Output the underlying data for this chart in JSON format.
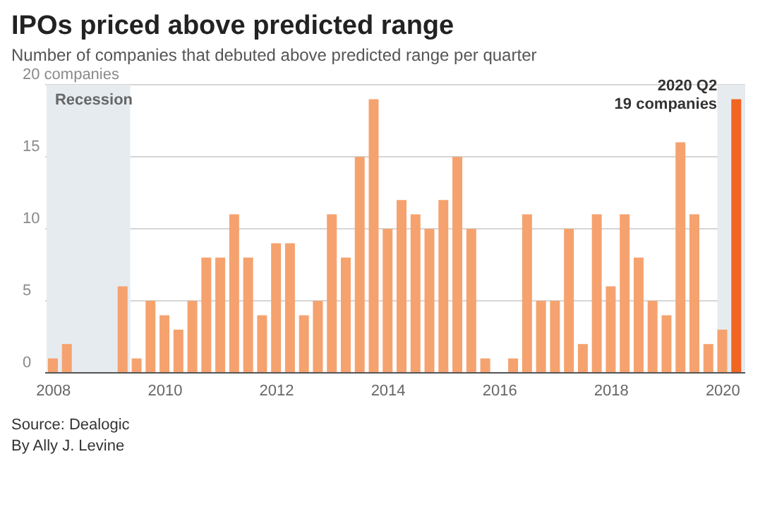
{
  "chart_data": {
    "type": "bar",
    "title": "IPOs priced above predicted range",
    "subtitle": "Number of companies that debuted above predicted range per quarter",
    "x": [
      2008,
      2008.25,
      2008.5,
      2008.75,
      2009,
      2009.25,
      2009.5,
      2009.75,
      2010,
      2010.25,
      2010.5,
      2010.75,
      2011,
      2011.25,
      2011.5,
      2011.75,
      2012,
      2012.25,
      2012.5,
      2012.75,
      2013,
      2013.25,
      2013.5,
      2013.75,
      2014,
      2014.25,
      2014.5,
      2014.75,
      2015,
      2015.25,
      2015.5,
      2015.75,
      2016,
      2016.25,
      2016.5,
      2016.75,
      2017,
      2017.25,
      2017.5,
      2017.75,
      2018,
      2018.25,
      2018.5,
      2018.75,
      2019,
      2019.25,
      2019.5,
      2019.75,
      2020,
      2020.25
    ],
    "values": [
      1,
      2,
      0,
      0,
      0,
      6,
      1,
      5,
      4,
      3,
      5,
      8,
      8,
      11,
      8,
      4,
      9,
      9,
      4,
      5,
      11,
      8,
      15,
      19,
      10,
      12,
      11,
      10,
      12,
      15,
      10,
      1,
      0,
      1,
      11,
      5,
      5,
      10,
      2,
      11,
      6,
      11,
      8,
      5,
      4,
      16,
      11,
      2,
      3,
      19
    ],
    "colors": [
      "#f5a26f",
      "#f5a26f",
      "#f5a26f",
      "#f5a26f",
      "#f5a26f",
      "#f5a26f",
      "#f5a26f",
      "#f5a26f",
      "#f5a26f",
      "#f5a26f",
      "#f5a26f",
      "#f5a26f",
      "#f5a26f",
      "#f5a26f",
      "#f5a26f",
      "#f5a26f",
      "#f5a26f",
      "#f5a26f",
      "#f5a26f",
      "#f5a26f",
      "#f5a26f",
      "#f5a26f",
      "#f5a26f",
      "#f5a26f",
      "#f5a26f",
      "#f5a26f",
      "#f5a26f",
      "#f5a26f",
      "#f5a26f",
      "#f5a26f",
      "#f5a26f",
      "#f5a26f",
      "#f5a26f",
      "#f5a26f",
      "#f5a26f",
      "#f5a26f",
      "#f5a26f",
      "#f5a26f",
      "#f5a26f",
      "#f5a26f",
      "#f5a26f",
      "#f5a26f",
      "#f5a26f",
      "#f5a26f",
      "#f5a26f",
      "#f5a26f",
      "#f5a26f",
      "#f5a26f",
      "#f5a26f",
      "#f26522"
    ],
    "xlim": [
      2007.85,
      2020.4
    ],
    "xticks": [
      2008,
      2010,
      2012,
      2014,
      2016,
      2018,
      2020
    ],
    "ylim": [
      0,
      20
    ],
    "yticks": [
      0,
      5,
      10,
      15,
      {
        "value": 20,
        "label": "20 companies"
      }
    ],
    "grid": "y",
    "bands": [
      {
        "axis": "x",
        "from": 2007.875,
        "to": 2009.375,
        "label": "Recession",
        "color": "#e6ebef"
      },
      {
        "axis": "x",
        "from": 2019.9,
        "to": 2020.4,
        "label": null,
        "color": "#e6ebef"
      }
    ],
    "annotations": [
      {
        "text": "2020 Q2\n19 companies",
        "x": 2020.25,
        "y": 19
      },
      "Source: Dealogic",
      "By Ally J. Levine"
    ]
  }
}
